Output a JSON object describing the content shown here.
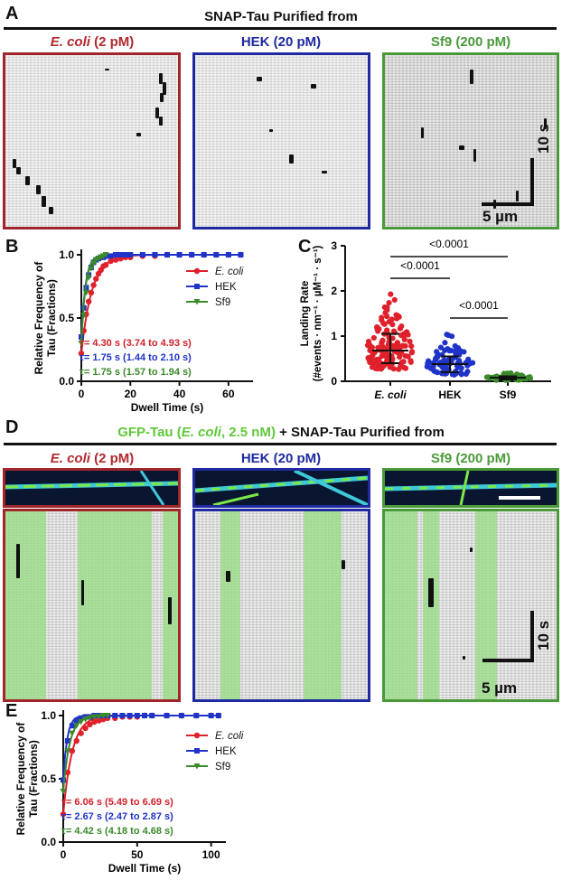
{
  "panelA": {
    "letter": "A",
    "title": "SNAP-Tau Purified from",
    "kymographs": [
      {
        "label_italic": "E. coli",
        "label_rest": " (2 pM)",
        "color": "#b2282e"
      },
      {
        "label": "HEK (20 pM)",
        "color": "#1f2a9e"
      },
      {
        "label": "Sf9 (200 pM)",
        "color": "#4a9a3a"
      }
    ],
    "scale_time": "10 s",
    "scale_length": "5 µm"
  },
  "panelB": {
    "letter": "B",
    "ylabel_line1": "Relative Frequency of",
    "ylabel_line2": "Tau (Fractions)",
    "xlabel": "Dwell Time (s)",
    "annotations": [
      {
        "text": "τ= 4.30 s (3.74 to 4.93 s)",
        "color": "#d0202a"
      },
      {
        "text": "τ= 1.75 s (1.44 to 2.10 s)",
        "color": "#1f33c8"
      },
      {
        "text": "τ= 1.75 s (1.57 to 1.94 s)",
        "color": "#3b8a2a"
      }
    ]
  },
  "panelC": {
    "letter": "C",
    "ylabel_line1": "Landing Rate",
    "ylabel_line2": "(#events · nm⁻¹ · µM⁻¹ · s⁻¹)",
    "comparisons": [
      "<0.0001",
      "<0.0001",
      "<0.0001"
    ]
  },
  "panelD": {
    "letter": "D",
    "title_green": "GFP-Tau (",
    "title_green_italic": "E. coli",
    "title_green_end": ", 2.5 nM)",
    "title_black": " + SNAP-Tau Purified from",
    "kymographs": [
      {
        "label_italic": "E. coli",
        "label_rest": " (2 pM)",
        "color": "#b2282e"
      },
      {
        "label": "HEK (20 pM)",
        "color": "#1f2a9e"
      },
      {
        "label": "Sf9 (200 pM)",
        "color": "#4a9a3a"
      }
    ],
    "scale_time": "10 s",
    "scale_length": "5 µm"
  },
  "panelE": {
    "letter": "E",
    "ylabel_line1": "Relative Frequency of",
    "ylabel_line2": "Tau (Fractions)",
    "xlabel": "Dwell Time (s)",
    "annotations": [
      {
        "text": "τ= 6.06 s (5.49 to 6.69 s)",
        "color": "#d0202a"
      },
      {
        "text": "τ= 2.67 s (2.47 to 2.87 s)",
        "color": "#1f33c8"
      },
      {
        "text": "τ= 4.42 s (4.18 to 4.68 s)",
        "color": "#3b8a2a"
      }
    ]
  },
  "chart_data": [
    {
      "id": "B",
      "type": "line",
      "xlabel": "Dwell Time (s)",
      "ylabel": "Relative Frequency of Tau (Fractions)",
      "xlim": [
        0,
        70
      ],
      "ylim": [
        0,
        1.0
      ],
      "xticks": [
        0,
        20,
        40,
        60
      ],
      "yticks": [
        0.0,
        0.5,
        1.0
      ],
      "legend_position": "right",
      "series": [
        {
          "name": "E. coli",
          "color": "#e0202a",
          "marker": "circle",
          "tau": 4.3,
          "x": [
            0,
            1,
            2,
            3,
            4,
            5,
            6,
            7,
            8,
            9,
            10,
            12,
            14,
            16,
            18,
            20,
            25,
            30,
            35,
            40,
            45,
            50,
            55,
            60,
            65
          ],
          "y": [
            0.22,
            0.4,
            0.53,
            0.63,
            0.7,
            0.76,
            0.81,
            0.85,
            0.88,
            0.91,
            0.92,
            0.95,
            0.96,
            0.97,
            0.98,
            0.98,
            0.99,
            0.99,
            1.0,
            1.0,
            1.0,
            1.0,
            1.0,
            1.0,
            1.0
          ]
        },
        {
          "name": "HEK",
          "color": "#1f33c8",
          "marker": "square",
          "tau": 1.75,
          "x": [
            0,
            1,
            2,
            3,
            4,
            5,
            6,
            7,
            8,
            9,
            10,
            12,
            14,
            16,
            18,
            20,
            25,
            30,
            35,
            40,
            45,
            50,
            55,
            60,
            65
          ],
          "y": [
            0.35,
            0.58,
            0.74,
            0.84,
            0.9,
            0.94,
            0.96,
            0.97,
            0.98,
            0.98,
            0.99,
            0.99,
            1.0,
            1.0,
            1.0,
            1.0,
            1.0,
            1.0,
            1.0,
            1.0,
            1.0,
            1.0,
            1.0,
            1.0,
            1.0
          ]
        },
        {
          "name": "Sf9",
          "color": "#3b8a2a",
          "marker": "triangle",
          "tau": 1.75,
          "x": [
            0,
            1,
            2,
            3,
            4,
            5,
            6,
            7,
            8,
            9,
            10
          ],
          "y": [
            0.3,
            0.52,
            0.7,
            0.82,
            0.89,
            0.93,
            0.96,
            0.97,
            0.98,
            0.99,
            1.0
          ]
        }
      ]
    },
    {
      "id": "C",
      "type": "scatter",
      "ylabel": "Landing Rate (#events · nm⁻¹ · µM⁻¹ · s⁻¹)",
      "categories": [
        "E. coli",
        "HEK",
        "Sf9"
      ],
      "ylim": [
        0,
        3
      ],
      "yticks": [
        0,
        1,
        2,
        3
      ],
      "series": [
        {
          "name": "E. coli",
          "color": "#e0202a",
          "median": 0.68,
          "q1": 0.4,
          "q3": 1.05,
          "min": 0.05,
          "max": 2.2
        },
        {
          "name": "HEK",
          "color": "#1f33c8",
          "median": 0.38,
          "q1": 0.2,
          "q3": 0.55,
          "min": 0.02,
          "max": 1.15
        },
        {
          "name": "Sf9",
          "color": "#3b8a2a",
          "median": 0.08,
          "q1": 0.04,
          "q3": 0.11,
          "min": 0.0,
          "max": 0.18
        }
      ]
    },
    {
      "id": "E",
      "type": "line",
      "xlabel": "Dwell Time (s)",
      "ylabel": "Relative Frequency of Tau (Fractions)",
      "xlim": [
        0,
        110
      ],
      "ylim": [
        0,
        1.0
      ],
      "xticks": [
        0,
        50,
        100
      ],
      "yticks": [
        0.0,
        0.5,
        1.0
      ],
      "legend_position": "right",
      "series": [
        {
          "name": "E. coli",
          "color": "#e0202a",
          "marker": "circle",
          "tau": 6.06,
          "x": [
            0,
            3,
            6,
            9,
            12,
            15,
            18,
            21,
            24,
            27,
            30,
            35,
            40,
            45,
            50,
            55,
            60,
            70,
            80,
            90,
            100,
            105
          ],
          "y": [
            0.22,
            0.55,
            0.72,
            0.8,
            0.86,
            0.9,
            0.93,
            0.95,
            0.96,
            0.97,
            0.98,
            0.98,
            0.99,
            0.99,
            0.99,
            1.0,
            1.0,
            1.0,
            1.0,
            1.0,
            1.0,
            1.0
          ]
        },
        {
          "name": "HEK",
          "color": "#1f33c8",
          "marker": "square",
          "tau": 2.67,
          "x": [
            0,
            3,
            6,
            9,
            12,
            15,
            18,
            21,
            24,
            27,
            30,
            35,
            40,
            45,
            50,
            55,
            60,
            70,
            80,
            90,
            100,
            105
          ],
          "y": [
            0.49,
            0.8,
            0.92,
            0.96,
            0.98,
            0.99,
            0.99,
            1.0,
            1.0,
            1.0,
            1.0,
            1.0,
            1.0,
            1.0,
            1.0,
            1.0,
            1.0,
            1.0,
            1.0,
            1.0,
            1.0,
            1.0
          ]
        },
        {
          "name": "Sf9",
          "color": "#3b8a2a",
          "marker": "triangle",
          "tau": 4.42,
          "x": [
            0,
            3,
            6,
            9,
            12,
            15,
            18,
            21,
            24,
            27,
            30
          ],
          "y": [
            0.4,
            0.72,
            0.86,
            0.92,
            0.95,
            0.97,
            0.98,
            0.99,
            0.99,
            1.0,
            1.0
          ]
        }
      ]
    }
  ]
}
